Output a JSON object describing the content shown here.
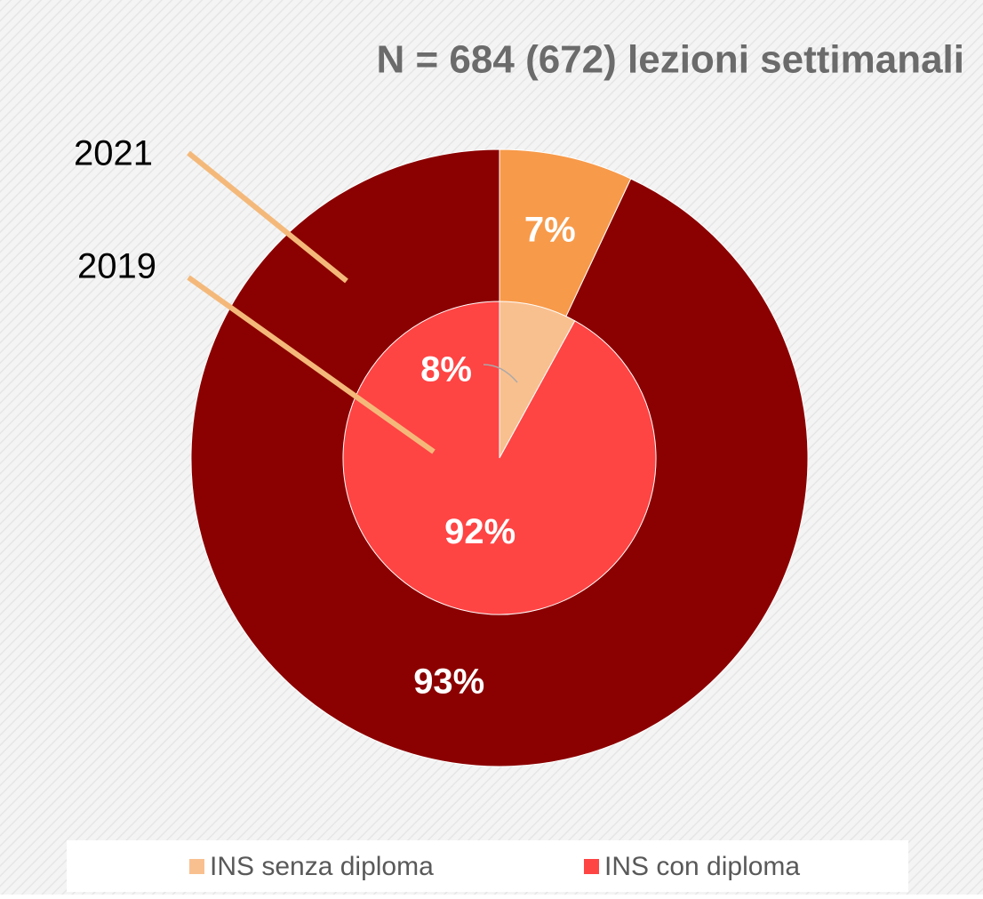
{
  "chart_data": {
    "type": "nested_pie",
    "title": "N = 684 (672) lezioni settimanali",
    "categories": [
      "INS senza diploma",
      "INS con diploma"
    ],
    "legend_colors": [
      "#f9c08f",
      "#ff4444"
    ],
    "series": [
      {
        "name": "2021",
        "colors": [
          "#f79a4a",
          "#8b0000"
        ],
        "values": [
          7,
          93
        ],
        "value_labels": [
          "7%",
          "93%"
        ]
      },
      {
        "name": "2019",
        "colors": [
          "#f9c08f",
          "#ff4444"
        ],
        "values": [
          8,
          92
        ],
        "value_labels": [
          "8%",
          "92%"
        ]
      }
    ]
  }
}
